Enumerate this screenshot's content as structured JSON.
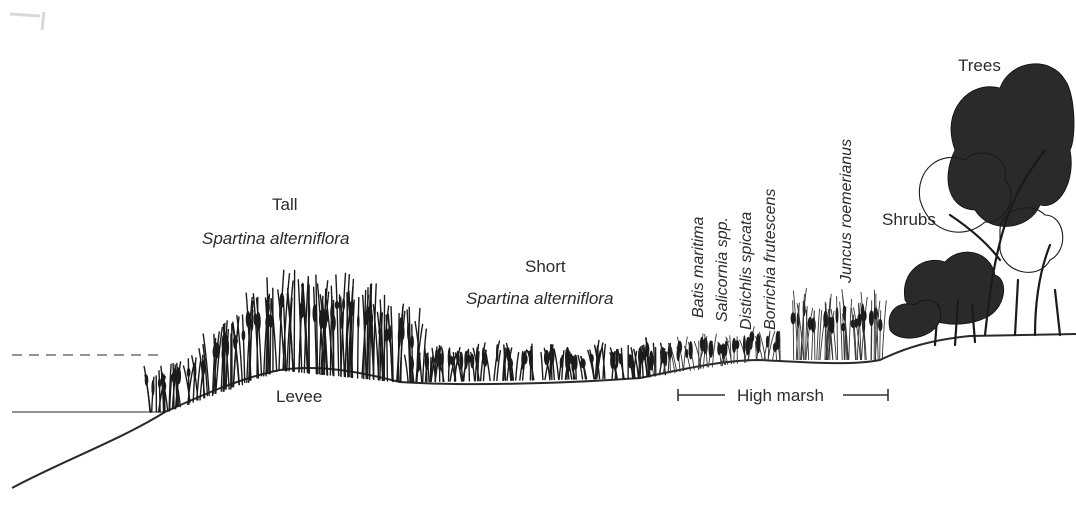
{
  "labels": {
    "tall_title": "Tall",
    "tall_species": "Spartina alterniflora",
    "short_title": "Short",
    "short_species": "Spartina alterniflora",
    "levee": "Levee",
    "high_marsh": "High marsh",
    "shrubs": "Shrubs",
    "trees": "Trees"
  },
  "species_vertical": [
    "Batis maritima",
    "Salicornia spp.",
    "Distichlis spicata",
    "Borrichia frutescens",
    "Juncus roemerianus"
  ]
}
